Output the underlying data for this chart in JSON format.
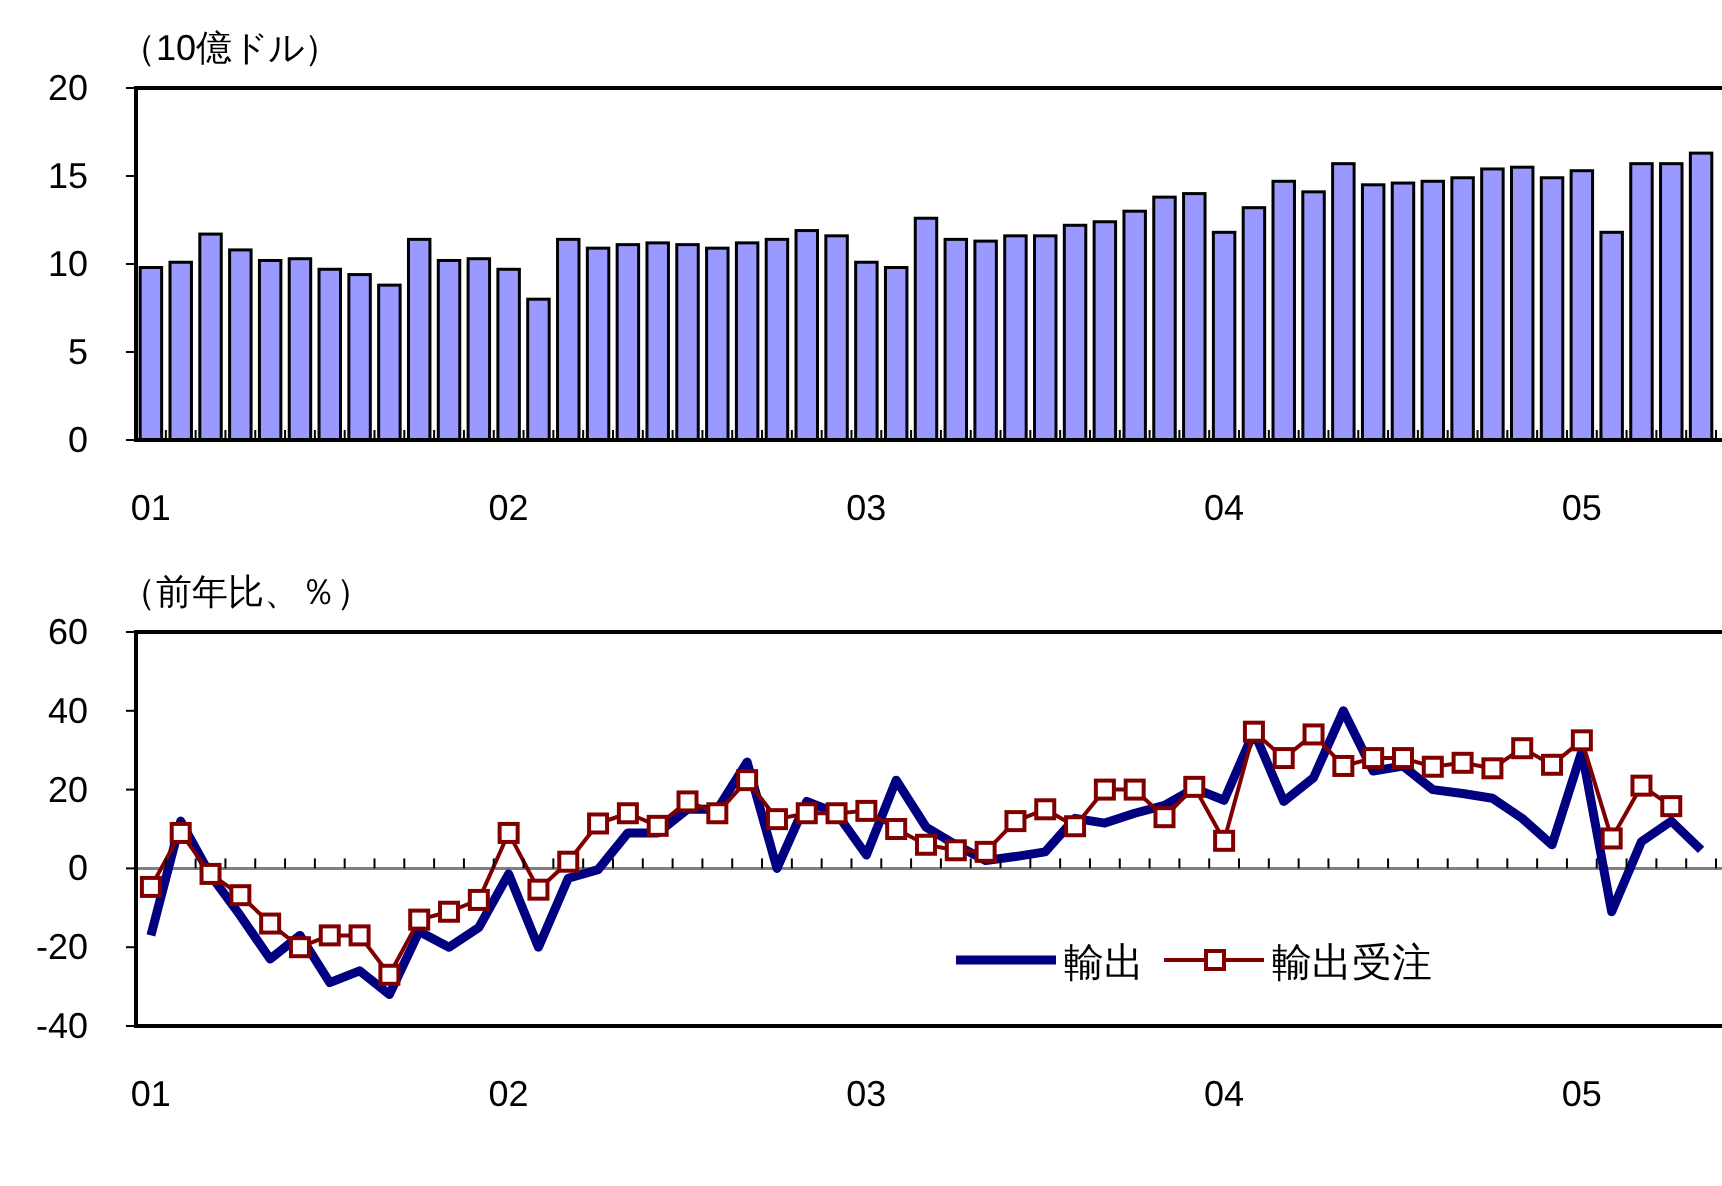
{
  "chart_data": [
    {
      "type": "bar",
      "ylabel": "（10億ドル）",
      "categories": [
        "01",
        null,
        null,
        null,
        null,
        null,
        null,
        null,
        null,
        null,
        null,
        null,
        "02",
        null,
        null,
        null,
        null,
        null,
        null,
        null,
        null,
        null,
        null,
        null,
        "03",
        null,
        null,
        null,
        null,
        null,
        null,
        null,
        null,
        null,
        null,
        null,
        "04",
        null,
        null,
        null,
        null,
        null,
        null,
        null,
        null,
        null,
        null,
        null,
        "05",
        null,
        null,
        null,
        null
      ],
      "series": [
        {
          "color": "#9999ff",
          "values": [
            9.8,
            10.1,
            11.7,
            10.8,
            10.2,
            10.3,
            9.7,
            9.4,
            8.8,
            11.4,
            10.2,
            10.3,
            9.7,
            8.0,
            11.4,
            10.9,
            11.1,
            11.2,
            11.1,
            10.9,
            11.2,
            11.4,
            11.9,
            11.6,
            10.1,
            9.8,
            12.6,
            11.4,
            11.3,
            11.6,
            11.6,
            12.2,
            12.4,
            13.0,
            13.8,
            14.0,
            11.8,
            13.2,
            14.7,
            14.1,
            15.7,
            14.5,
            14.6,
            14.7,
            14.9,
            15.4,
            15.5,
            14.9,
            15.3,
            11.8,
            15.7,
            15.7,
            16.3
          ]
        }
      ],
      "ylim": [
        0,
        20
      ],
      "yticks": [
        0,
        5,
        10,
        15,
        20
      ],
      "grid": false,
      "legend": false
    },
    {
      "type": "line",
      "ylabel": "（前年比、％）",
      "categories": [
        "01",
        null,
        null,
        null,
        null,
        null,
        null,
        null,
        null,
        null,
        null,
        null,
        "02",
        null,
        null,
        null,
        null,
        null,
        null,
        null,
        null,
        null,
        null,
        null,
        "03",
        null,
        null,
        null,
        null,
        null,
        null,
        null,
        null,
        null,
        null,
        null,
        "04",
        null,
        null,
        null,
        null,
        null,
        null,
        null,
        null,
        null,
        null,
        null,
        "05",
        null,
        null,
        null,
        null
      ],
      "series": [
        {
          "name": "輸出",
          "color": "#000080",
          "marker": "none",
          "values": [
            -17,
            12,
            -1.7,
            -12,
            -23,
            -17,
            -29,
            -26,
            -32,
            -16,
            -20,
            -15,
            -1.4,
            -20,
            -2.5,
            -0.3,
            9,
            9,
            15,
            15,
            27,
            0,
            17,
            14,
            3.4,
            22.4,
            10.5,
            6,
            2,
            3,
            4.2,
            12.7,
            11.5,
            14,
            16,
            20.3,
            17.3,
            34.7,
            17,
            23,
            40,
            24.7,
            26,
            20,
            19,
            17.8,
            12.7,
            6,
            29.7,
            -11,
            6.8,
            12,
            4.7
          ]
        },
        {
          "name": "輸出受注",
          "color": "#800000",
          "marker": "square",
          "values": [
            -4.7,
            9,
            -1.4,
            -6.8,
            -14,
            -20,
            -17,
            -17,
            -27,
            -13,
            -11,
            -8,
            9,
            -5.4,
            1.7,
            11.4,
            14,
            10.8,
            17,
            14,
            22.4,
            12.5,
            14,
            14,
            14.6,
            10,
            6,
            4.6,
            4.2,
            12,
            15,
            10.7,
            20,
            20,
            13,
            20.7,
            7,
            34.7,
            28,
            34,
            26,
            28,
            28,
            25.8,
            26.8,
            25.4,
            30.5,
            26.3,
            32.5,
            7.6,
            21,
            15.8,
            null
          ]
        }
      ],
      "ylim": [
        -40,
        60
      ],
      "yticks": [
        -40,
        -20,
        0,
        20,
        40,
        60
      ],
      "ref_lines": [
        {
          "axis": "y",
          "value": 0,
          "color": "#808080"
        }
      ],
      "grid": false,
      "legend": "bottom right"
    }
  ]
}
